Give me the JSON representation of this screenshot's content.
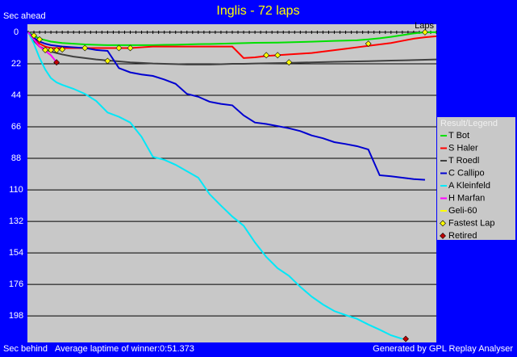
{
  "chart_data": {
    "type": "line",
    "title": "Inglis - 72 laps",
    "y_label_top": "Sec ahead",
    "y_label_bottom": "Sec behind",
    "x_label": "Laps",
    "footer_left": "Average laptime of winner:0:51.373",
    "footer_right": "Generated by GPL Replay Analyser",
    "legend_title": "Result/Legend",
    "y_inverted": true,
    "grid": true,
    "xlim": [
      0,
      72
    ],
    "ylim": [
      -5.6,
      216.5
    ],
    "yticks": [
      0,
      22,
      44,
      66,
      88,
      110,
      132,
      154,
      176,
      198
    ],
    "x": [
      0,
      1,
      2,
      3,
      4,
      5,
      6,
      8,
      10,
      12,
      14,
      16,
      18,
      20,
      22,
      24,
      26,
      28,
      30,
      32,
      34,
      36,
      38,
      40,
      42,
      44,
      46,
      48,
      50,
      52,
      54,
      56,
      58,
      60,
      62,
      64,
      66,
      68,
      70,
      72
    ],
    "series": [
      {
        "name": "T Bot",
        "color": "#00e000",
        "values": [
          0,
          2.5,
          4.5,
          5.5,
          6.5,
          7,
          7.5,
          8,
          8.5,
          8.8,
          9,
          9,
          9,
          9,
          9,
          8.8,
          8.7,
          8.5,
          8.3,
          8.2,
          8,
          7.8,
          7.6,
          7.4,
          7.3,
          7.2,
          7,
          6.8,
          6.6,
          6.3,
          6,
          5.8,
          5.6,
          5,
          4.2,
          3.2,
          2,
          0.8,
          0,
          0
        ]
      },
      {
        "name": "S Haler",
        "color": "#ff0000",
        "values": [
          0,
          5,
          8,
          10,
          11,
          11,
          11,
          11,
          11,
          11,
          11,
          11,
          11,
          10.5,
          10,
          10,
          10,
          10,
          10,
          10,
          10,
          10,
          18,
          17.5,
          16.5,
          16,
          15.5,
          15,
          14.5,
          13.5,
          12.5,
          11.5,
          10.5,
          9.5,
          8.5,
          7.5,
          6,
          4.5,
          3.5,
          2.8
        ]
      },
      {
        "name": "T Roedl",
        "color": "#404040",
        "values": [
          0,
          6,
          10,
          12,
          13.5,
          14.5,
          15.5,
          17,
          18,
          19,
          19.7,
          20.3,
          21,
          21.4,
          21.8,
          22,
          22.2,
          22.5,
          22.5,
          22.5,
          22.3,
          22,
          22,
          21.8,
          21.7,
          21.5,
          21.4,
          21.2,
          21,
          20.8,
          20.6,
          20.5,
          20.3,
          20.2,
          20,
          19.8,
          19.6,
          19.4,
          19.2,
          19
        ]
      },
      {
        "name": "C Callipo",
        "color": "#0000d0",
        "values": [
          0,
          4,
          6.5,
          8,
          9,
          9.5,
          10,
          10.5,
          11,
          12.4,
          13,
          25,
          28,
          29.5,
          30.5,
          33,
          36,
          43,
          45,
          48.5,
          50,
          51,
          58,
          63,
          64,
          65.5,
          67,
          69,
          72,
          74,
          76.7,
          78,
          79.5,
          81.8,
          99.8,
          100.5,
          101.5,
          102.5,
          103,
          null
        ]
      },
      {
        "name": "A Kleinfeld",
        "color": "#00e8f8",
        "values": [
          0,
          8,
          18,
          26,
          32,
          35,
          36.7,
          39.5,
          43,
          48,
          56,
          59,
          63,
          73,
          87,
          89,
          92.5,
          97,
          101.5,
          113,
          121,
          128.6,
          135,
          146.7,
          156.8,
          164.7,
          170,
          177.7,
          184.5,
          190,
          194.6,
          197.4,
          200,
          204,
          207.6,
          211.5,
          214,
          null,
          null,
          null
        ]
      },
      {
        "name": "H Marfan",
        "color": "#ff00ff",
        "values": [
          0,
          5,
          10,
          13,
          16,
          21,
          null,
          null,
          null,
          null,
          null,
          null,
          null,
          null,
          null,
          null,
          null,
          null,
          null,
          null,
          null,
          null,
          null,
          null,
          null,
          null,
          null,
          null,
          null,
          null,
          null,
          null,
          null,
          null,
          null,
          null,
          null,
          null,
          null,
          null
        ]
      },
      {
        "name": "Geli-60",
        "color": "#ffff00",
        "values": [
          null,
          null,
          null,
          null,
          null,
          null,
          null,
          null,
          null,
          null,
          null,
          null,
          null,
          null,
          null,
          null,
          null,
          null,
          null,
          null,
          null,
          null,
          null,
          null,
          null,
          null,
          null,
          null,
          null,
          null,
          null,
          null,
          null,
          null,
          null,
          null,
          null,
          null,
          null,
          null
        ]
      }
    ],
    "markers": [
      {
        "name": "Fastest Lap",
        "color": "#ffff00",
        "x": [
          1,
          2,
          3,
          4,
          5,
          6,
          10,
          14,
          16,
          18,
          42,
          44,
          46,
          60,
          70
        ],
        "values": [
          2.3,
          5,
          12.4,
          12.4,
          12.4,
          12,
          11,
          20,
          11,
          11,
          16,
          16,
          21,
          8,
          0
        ]
      },
      {
        "name": "Retired",
        "color": "#c00000",
        "x": [
          5,
          66.6
        ],
        "values": [
          21,
          214
        ]
      }
    ]
  }
}
